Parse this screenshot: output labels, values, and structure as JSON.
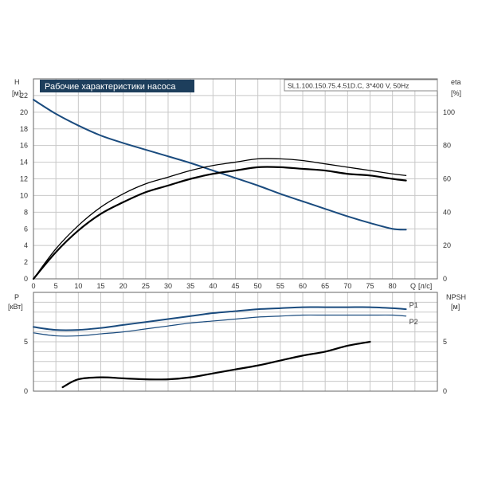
{
  "chart_data": [
    {
      "type": "line",
      "title": "Рабочие характеристики насоса",
      "subtitle": "SL1.100.150.75.4.51D.C, 3*400 V, 50Hz",
      "xlabel": "Q",
      "xunit": "[л/с]",
      "ylabel": "H",
      "yunit": "[м]",
      "y2label": "eta",
      "y2unit": "[%]",
      "xlim": [
        0,
        90
      ],
      "ylim": [
        0,
        24
      ],
      "y2lim": [
        0,
        120
      ],
      "x_ticks": [
        "0",
        "5",
        "10",
        "15",
        "20",
        "25",
        "30",
        "35",
        "40",
        "45",
        "50",
        "55",
        "60",
        "65",
        "70",
        "75",
        "80"
      ],
      "y_ticks": [
        "0",
        "2",
        "4",
        "6",
        "8",
        "10",
        "12",
        "14",
        "16",
        "18",
        "20",
        "22"
      ],
      "y2_ticks": [
        "0",
        "20",
        "40",
        "60",
        "80",
        "100"
      ],
      "grid": true,
      "series": [
        {
          "axis": "left",
          "color": "#1a4b7e",
          "x": [
            0,
            5,
            10,
            15,
            20,
            25,
            30,
            35,
            40,
            45,
            50,
            55,
            60,
            65,
            70,
            75,
            80,
            83
          ],
          "y": [
            21.5,
            19.8,
            18.4,
            17.2,
            16.3,
            15.5,
            14.7,
            13.9,
            13.0,
            12.1,
            11.2,
            10.2,
            9.3,
            8.4,
            7.5,
            6.7,
            6.0,
            5.9
          ]
        },
        {
          "axis": "right",
          "color": "#000000",
          "x": [
            0,
            5,
            10,
            15,
            20,
            25,
            30,
            35,
            40,
            45,
            50,
            55,
            60,
            65,
            70,
            75,
            80,
            83
          ],
          "y": [
            0,
            18,
            32,
            43,
            51,
            57,
            61,
            65,
            68,
            70,
            72,
            72,
            71,
            69,
            67,
            65,
            63,
            62
          ]
        },
        {
          "axis": "right",
          "color": "#000000",
          "x": [
            0,
            5,
            10,
            15,
            20,
            25,
            30,
            35,
            40,
            45,
            50,
            55,
            60,
            65,
            70,
            75,
            80,
            83
          ],
          "y": [
            0,
            16,
            29,
            39,
            46,
            52,
            56,
            60,
            63,
            65,
            67,
            67,
            66,
            65,
            63,
            62,
            60,
            59
          ]
        }
      ]
    },
    {
      "type": "line",
      "xlabel": "",
      "ylabel": "P",
      "yunit": "[кВт]",
      "y2label": "NPSH",
      "y2unit": "[м]",
      "xlim": [
        0,
        90
      ],
      "ylim": [
        0,
        10
      ],
      "y2lim": [
        0,
        10
      ],
      "y_ticks": [
        "0",
        "5"
      ],
      "y2_ticks": [
        "0",
        "5"
      ],
      "grid": true,
      "series": [
        {
          "name": "P1",
          "axis": "left",
          "color": "#1a4b7e",
          "x": [
            0,
            5,
            10,
            15,
            20,
            25,
            30,
            35,
            40,
            45,
            50,
            55,
            60,
            65,
            70,
            75,
            80,
            83
          ],
          "y": [
            6.5,
            6.2,
            6.2,
            6.4,
            6.7,
            7.0,
            7.3,
            7.6,
            7.9,
            8.1,
            8.3,
            8.4,
            8.5,
            8.5,
            8.5,
            8.5,
            8.4,
            8.3
          ]
        },
        {
          "name": "P2",
          "axis": "left",
          "color": "#1a4b7e",
          "x": [
            0,
            5,
            10,
            15,
            20,
            25,
            30,
            35,
            40,
            45,
            50,
            55,
            60,
            65,
            70,
            75,
            80,
            83
          ],
          "y": [
            5.9,
            5.6,
            5.6,
            5.8,
            6.0,
            6.3,
            6.6,
            6.9,
            7.1,
            7.3,
            7.5,
            7.6,
            7.7,
            7.7,
            7.7,
            7.7,
            7.7,
            7.6
          ]
        },
        {
          "axis": "right",
          "color": "#000000",
          "x": [
            6.5,
            10,
            15,
            20,
            25,
            30,
            35,
            40,
            45,
            50,
            55,
            60,
            65,
            70,
            75
          ],
          "y": [
            0.4,
            1.2,
            1.4,
            1.3,
            1.2,
            1.2,
            1.4,
            1.8,
            2.2,
            2.6,
            3.1,
            3.6,
            4.0,
            4.6,
            5.0
          ]
        }
      ]
    }
  ]
}
